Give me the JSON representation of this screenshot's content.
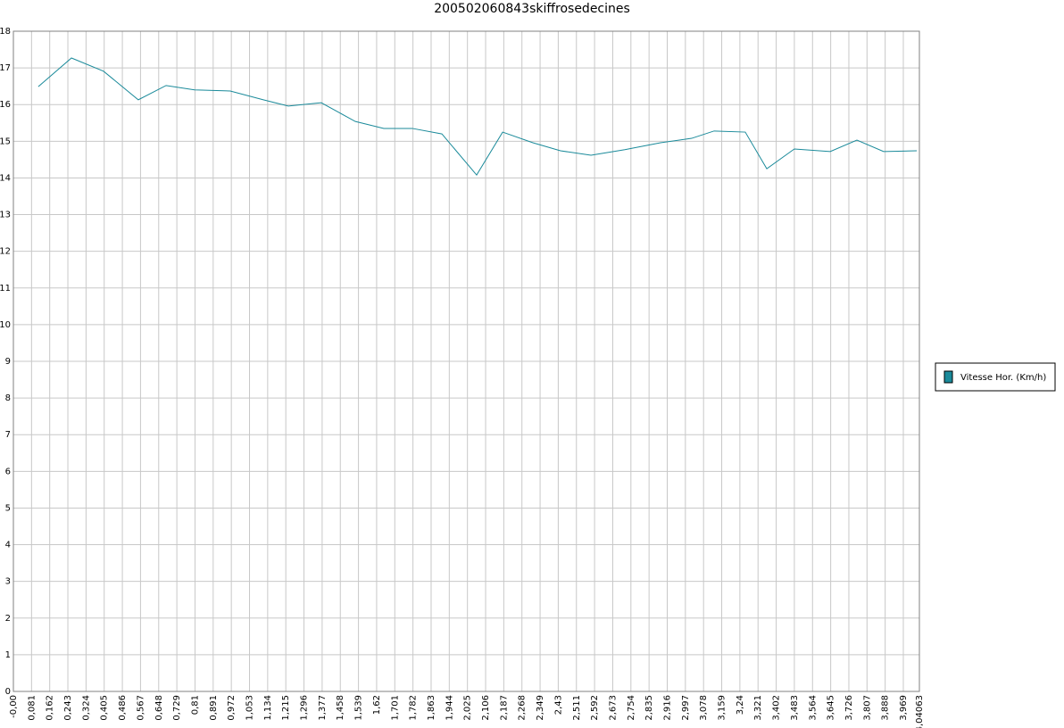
{
  "chart_data": {
    "type": "line",
    "title": "200502060843skiffrosedecines",
    "x": [
      0.111,
      0.259,
      0.402,
      0.557,
      0.681,
      0.808,
      0.967,
      1.115,
      1.226,
      1.373,
      1.525,
      1.652,
      1.779,
      1.911,
      2.066,
      2.182,
      2.317,
      2.44,
      2.576,
      2.727,
      2.886,
      3.025,
      3.125,
      3.264,
      3.36,
      3.483,
      3.643,
      3.762,
      3.881,
      4.029
    ],
    "series": [
      {
        "name": "Vitesse Hor. (Km/h)",
        "color": "#1a8a9a",
        "values": [
          16.49,
          17.27,
          16.91,
          16.13,
          16.52,
          16.4,
          16.37,
          16.13,
          15.96,
          16.05,
          15.54,
          15.35,
          15.35,
          15.2,
          14.08,
          15.25,
          14.96,
          14.74,
          14.62,
          14.77,
          14.96,
          15.08,
          15.28,
          15.25,
          14.25,
          14.79,
          14.72,
          15.03,
          14.72,
          14.74
        ]
      }
    ],
    "xlim": [
      0,
      4.04063
    ],
    "xticks": [
      {
        "value": 0,
        "label": "-0,00"
      },
      {
        "value": 0.081,
        "label": "0,081"
      },
      {
        "value": 0.162,
        "label": "0,162"
      },
      {
        "value": 0.243,
        "label": "0,243"
      },
      {
        "value": 0.324,
        "label": "0,324"
      },
      {
        "value": 0.405,
        "label": "0,405"
      },
      {
        "value": 0.486,
        "label": "0,486"
      },
      {
        "value": 0.567,
        "label": "0,567"
      },
      {
        "value": 0.648,
        "label": "0,648"
      },
      {
        "value": 0.729,
        "label": "0,729"
      },
      {
        "value": 0.81,
        "label": "0,81"
      },
      {
        "value": 0.891,
        "label": "0,891"
      },
      {
        "value": 0.972,
        "label": "0,972"
      },
      {
        "value": 1.053,
        "label": "1,053"
      },
      {
        "value": 1.134,
        "label": "1,134"
      },
      {
        "value": 1.215,
        "label": "1,215"
      },
      {
        "value": 1.296,
        "label": "1,296"
      },
      {
        "value": 1.377,
        "label": "1,377"
      },
      {
        "value": 1.458,
        "label": "1,458"
      },
      {
        "value": 1.539,
        "label": "1,539"
      },
      {
        "value": 1.62,
        "label": "1,62"
      },
      {
        "value": 1.701,
        "label": "1,701"
      },
      {
        "value": 1.782,
        "label": "1,782"
      },
      {
        "value": 1.863,
        "label": "1,863"
      },
      {
        "value": 1.944,
        "label": "1,944"
      },
      {
        "value": 2.025,
        "label": "2,025"
      },
      {
        "value": 2.106,
        "label": "2,106"
      },
      {
        "value": 2.187,
        "label": "2,187"
      },
      {
        "value": 2.268,
        "label": "2,268"
      },
      {
        "value": 2.349,
        "label": "2,349"
      },
      {
        "value": 2.43,
        "label": "2,43"
      },
      {
        "value": 2.511,
        "label": "2,511"
      },
      {
        "value": 2.592,
        "label": "2,592"
      },
      {
        "value": 2.673,
        "label": "2,673"
      },
      {
        "value": 2.754,
        "label": "2,754"
      },
      {
        "value": 2.835,
        "label": "2,835"
      },
      {
        "value": 2.916,
        "label": "2,916"
      },
      {
        "value": 2.997,
        "label": "2,997"
      },
      {
        "value": 3.078,
        "label": "3,078"
      },
      {
        "value": 3.159,
        "label": "3,159"
      },
      {
        "value": 3.24,
        "label": "3,24"
      },
      {
        "value": 3.321,
        "label": "3,321"
      },
      {
        "value": 3.402,
        "label": "3,402"
      },
      {
        "value": 3.483,
        "label": "3,483"
      },
      {
        "value": 3.564,
        "label": "3,564"
      },
      {
        "value": 3.645,
        "label": "3,645"
      },
      {
        "value": 3.726,
        "label": "3,726"
      },
      {
        "value": 3.807,
        "label": "3,807"
      },
      {
        "value": 3.888,
        "label": "3,888"
      },
      {
        "value": 3.969,
        "label": "3,969"
      },
      {
        "value": 4.04063,
        "label": "4,04063"
      }
    ],
    "ylim": [
      0,
      18
    ],
    "yticks": [
      0,
      1,
      2,
      3,
      4,
      5,
      6,
      7,
      8,
      9,
      10,
      11,
      12,
      13,
      14,
      15,
      16,
      17,
      18
    ],
    "grid": true
  }
}
